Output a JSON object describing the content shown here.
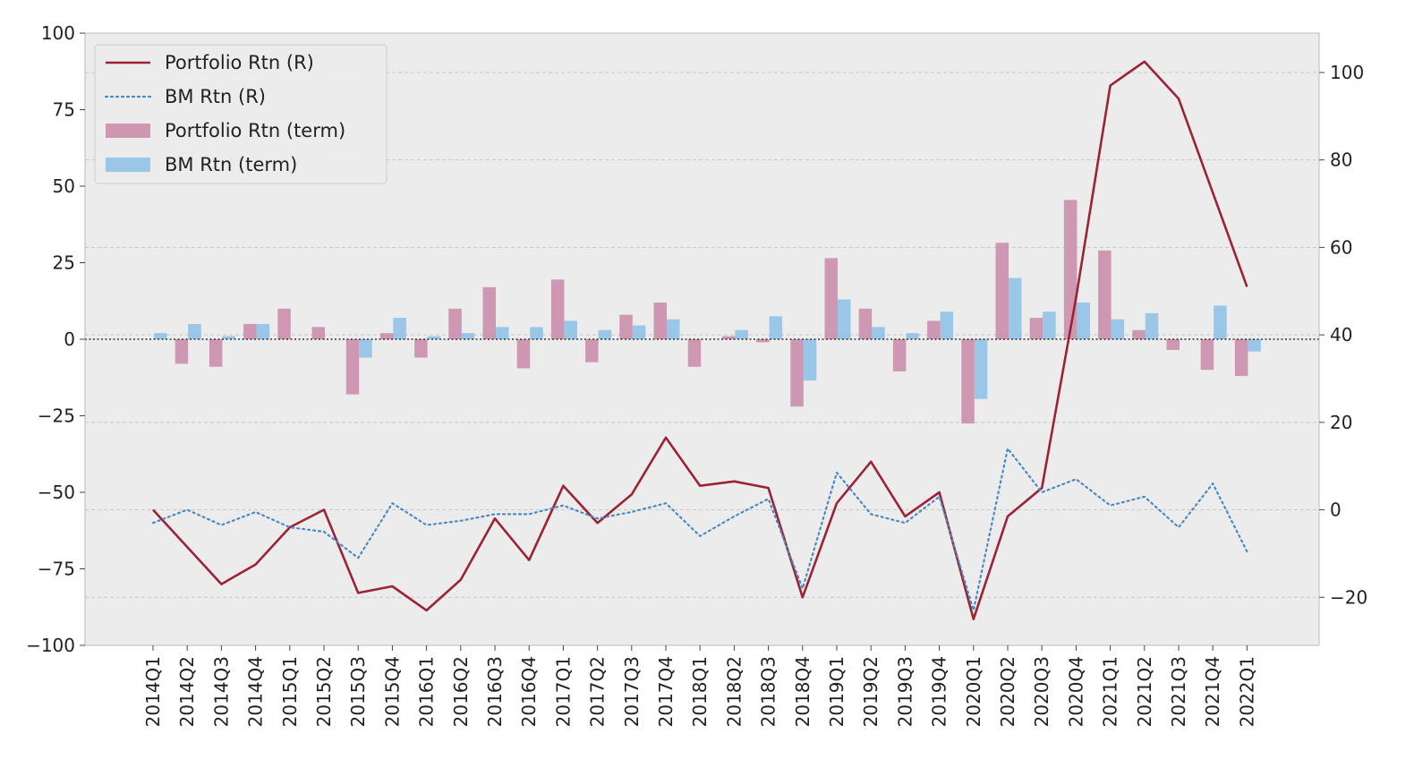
{
  "chart_data": {
    "type": "bar",
    "categories": [
      "2014Q1",
      "2014Q2",
      "2014Q3",
      "2014Q4",
      "2015Q1",
      "2015Q2",
      "2015Q3",
      "2015Q4",
      "2016Q1",
      "2016Q2",
      "2016Q3",
      "2016Q4",
      "2017Q1",
      "2017Q2",
      "2017Q3",
      "2017Q4",
      "2018Q1",
      "2018Q2",
      "2018Q3",
      "2018Q4",
      "2019Q1",
      "2019Q2",
      "2019Q3",
      "2019Q4",
      "2020Q1",
      "2020Q2",
      "2020Q3",
      "2020Q4",
      "2021Q1",
      "2021Q2",
      "2021Q3",
      "2021Q4",
      "2022Q1"
    ],
    "bar_series": [
      {
        "name": "Portfolio Rtn (term)",
        "color": "#c98aa8",
        "values": [
          0,
          -8,
          -9,
          5,
          10,
          4,
          -18,
          2,
          -6,
          10,
          17,
          -9.5,
          19.5,
          -7.5,
          8,
          12,
          -9,
          1,
          -1,
          -22,
          26.5,
          10,
          -10.5,
          6,
          -27.5,
          31.5,
          7,
          45.5,
          29,
          3,
          -3.5,
          -10,
          -12
        ]
      },
      {
        "name": "BM Rtn (term)",
        "color": "#8cbfe6",
        "values": [
          2,
          5,
          1,
          5,
          0,
          0,
          -6,
          7,
          1,
          2,
          4,
          4,
          6,
          3,
          4.5,
          6.5,
          0,
          3,
          7.5,
          -13.5,
          13,
          4,
          2,
          9,
          -19.5,
          20,
          9,
          12,
          6.5,
          8.5,
          0,
          11,
          -4
        ]
      }
    ],
    "line_series": [
      {
        "name": "Portfolio Rtn (R)",
        "color": "#9b2335",
        "style": "solid",
        "values": [
          0,
          -8.5,
          -17,
          -12.5,
          -4,
          0,
          -19,
          -17.5,
          -23,
          -16,
          -2,
          -11.5,
          5.5,
          -3,
          3.5,
          16.5,
          5.5,
          6.5,
          5,
          -20,
          1.5,
          11,
          -1.5,
          4,
          -25,
          -1.5,
          5,
          48.5,
          97,
          102.5,
          94,
          72.5,
          51
        ]
      },
      {
        "name": "BM Rtn (R)",
        "color": "#4a8ac4",
        "style": "dotted",
        "values": [
          -3,
          0,
          -3.5,
          -0.5,
          -4,
          -5,
          -11,
          1.5,
          -3.5,
          -2.5,
          -1,
          -1,
          1,
          -2,
          -0.5,
          1.5,
          -6,
          -1.5,
          2.5,
          -18,
          8.5,
          -1,
          -3,
          3,
          -23,
          14,
          4,
          7,
          1,
          3,
          -4,
          6,
          -9.5
        ]
      }
    ],
    "left_axis": {
      "ylim": [
        -100,
        100
      ],
      "ticks": [
        -100,
        -75,
        -50,
        -25,
        0,
        25,
        50,
        75,
        100
      ],
      "tick_labels": [
        "−100",
        "−75",
        "−50",
        "−25",
        "0",
        "25",
        "50",
        "75",
        "100"
      ]
    },
    "right_axis": {
      "ylim": [
        -31,
        109
      ],
      "ticks": [
        -20,
        0,
        20,
        40,
        60,
        80,
        100
      ],
      "tick_labels": [
        "−20",
        "0",
        "20",
        "40",
        "60",
        "80",
        "100"
      ]
    },
    "zero_line": true,
    "grid": true,
    "legend": {
      "placement": "top-left",
      "entries": [
        {
          "label": "Portfolio Rtn (R)",
          "kind": "line",
          "color": "#9b2335",
          "style": "solid"
        },
        {
          "label": "BM Rtn (R)",
          "kind": "line",
          "color": "#4a8ac4",
          "style": "dotted"
        },
        {
          "label": "Portfolio Rtn (term)",
          "kind": "patch",
          "color": "#c98aa8"
        },
        {
          "label": "BM Rtn (term)",
          "kind": "patch",
          "color": "#8cbfe6"
        }
      ]
    },
    "title": "",
    "xlabel": "",
    "ylabel": "",
    "colors": {
      "background": "#ececec",
      "grid": "#c8c8c8",
      "axis": "#bbbbbb",
      "text": "#222222"
    }
  }
}
